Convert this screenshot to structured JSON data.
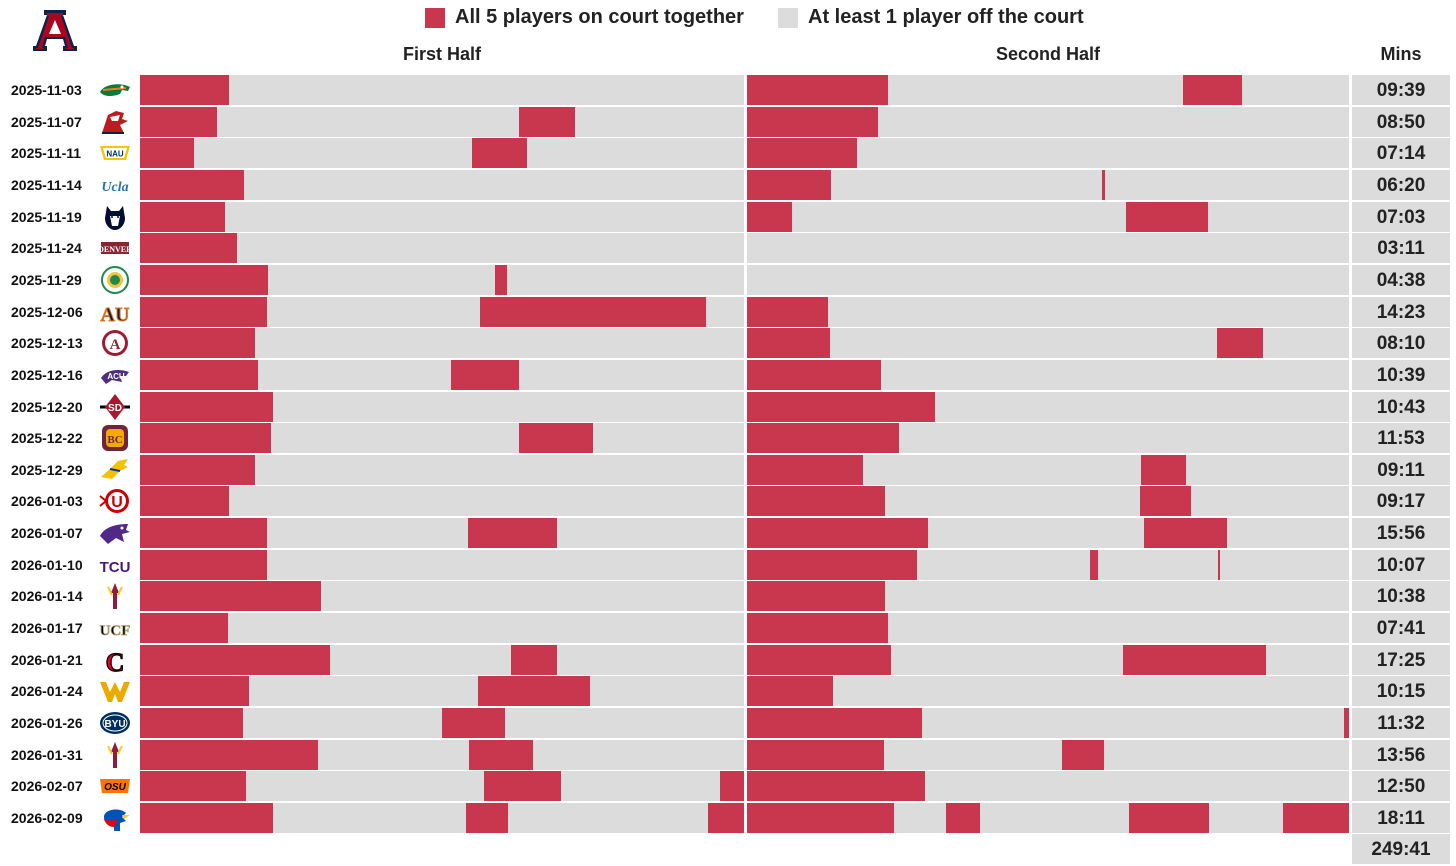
{
  "chart_data": {
    "type": "timeline",
    "team": "Arizona",
    "legend": [
      {
        "label": "All 5 players on court together",
        "color": "#c8374e"
      },
      {
        "label": "At least 1 player off the court",
        "color": "#dcdcdc"
      }
    ],
    "halves": [
      "First Half",
      "Second Half"
    ],
    "mins_header": "Mins",
    "half_length_minutes": 20,
    "games": [
      {
        "date": "2025-11-03",
        "opponent_logo": "florida-gator-logo",
        "mins": "09:39",
        "first_half": [
          [
            0,
            2.95
          ]
        ],
        "second_half": [
          [
            0,
            4.7
          ],
          [
            14.5,
            16.45
          ]
        ]
      },
      {
        "date": "2025-11-07",
        "opponent_logo": "utah-tech-logo",
        "mins": "08:50",
        "first_half": [
          [
            0,
            2.55
          ],
          [
            12.55,
            14.4
          ]
        ],
        "second_half": [
          [
            0,
            4.35
          ]
        ]
      },
      {
        "date": "2025-11-11",
        "opponent_logo": "nau-logo",
        "mins": "07:14",
        "first_half": [
          [
            0,
            1.8
          ],
          [
            11.0,
            12.8
          ]
        ],
        "second_half": [
          [
            0,
            3.65
          ]
        ]
      },
      {
        "date": "2025-11-14",
        "opponent_logo": "ucla-logo",
        "mins": "06:20",
        "first_half": [
          [
            0,
            3.45
          ]
        ],
        "second_half": [
          [
            0,
            2.8
          ],
          [
            11.8,
            11.88
          ]
        ]
      },
      {
        "date": "2025-11-19",
        "opponent_logo": "uconn-husky-logo",
        "mins": "07:03",
        "first_half": [
          [
            0,
            2.8
          ]
        ],
        "second_half": [
          [
            0,
            1.5
          ],
          [
            12.6,
            15.3
          ]
        ]
      },
      {
        "date": "2025-11-24",
        "opponent_logo": "denver-logo",
        "mins": "03:11",
        "first_half": [
          [
            0,
            3.2
          ]
        ],
        "second_half": []
      },
      {
        "date": "2025-11-29",
        "opponent_logo": "green-round-seal-logo",
        "mins": "04:38",
        "first_half": [
          [
            0,
            4.25
          ],
          [
            11.75,
            12.15
          ]
        ],
        "second_half": []
      },
      {
        "date": "2025-12-06",
        "opponent_logo": "auburn-logo",
        "mins": "14:23",
        "first_half": [
          [
            0,
            4.2
          ],
          [
            11.25,
            18.75
          ]
        ],
        "second_half": [
          [
            0,
            2.7
          ]
        ]
      },
      {
        "date": "2025-12-13",
        "opponent_logo": "alabama-logo",
        "mins": "08:10",
        "first_half": [
          [
            0,
            3.8
          ]
        ],
        "second_half": [
          [
            0,
            2.75
          ],
          [
            15.6,
            17.15
          ]
        ]
      },
      {
        "date": "2025-12-16",
        "opponent_logo": "abilene-christian-logo",
        "mins": "10:39",
        "first_half": [
          [
            0,
            3.9
          ],
          [
            10.3,
            12.55
          ]
        ],
        "second_half": [
          [
            0,
            4.45
          ]
        ]
      },
      {
        "date": "2025-12-20",
        "opponent_logo": "san-diego-state-logo",
        "mins": "10:43",
        "first_half": [
          [
            0,
            4.4
          ]
        ],
        "second_half": [
          [
            0,
            6.25
          ]
        ]
      },
      {
        "date": "2025-12-22",
        "opponent_logo": "bethune-cookman-logo",
        "mins": "11:53",
        "first_half": [
          [
            0,
            4.35
          ],
          [
            12.55,
            15.0
          ]
        ],
        "second_half": [
          [
            0,
            5.05
          ]
        ]
      },
      {
        "date": "2025-12-29",
        "opponent_logo": "south-dakota-state-logo",
        "mins": "09:11",
        "first_half": [
          [
            0,
            3.8
          ]
        ],
        "second_half": [
          [
            0,
            3.85
          ],
          [
            13.1,
            14.6
          ]
        ]
      },
      {
        "date": "2026-01-03",
        "opponent_logo": "utah-logo",
        "mins": "09:17",
        "first_half": [
          [
            0,
            2.95
          ]
        ],
        "second_half": [
          [
            0,
            4.6
          ],
          [
            13.05,
            14.75
          ]
        ]
      },
      {
        "date": "2026-01-07",
        "opponent_logo": "kansas-state-logo",
        "mins": "15:56",
        "first_half": [
          [
            0,
            4.2
          ],
          [
            10.85,
            13.8
          ]
        ],
        "second_half": [
          [
            0,
            6.0
          ],
          [
            13.2,
            15.95
          ]
        ]
      },
      {
        "date": "2026-01-10",
        "opponent_logo": "tcu-logo",
        "mins": "10:07",
        "first_half": [
          [
            0,
            4.2
          ]
        ],
        "second_half": [
          [
            0,
            5.65
          ],
          [
            11.4,
            11.65
          ],
          [
            15.65,
            15.69
          ]
        ]
      },
      {
        "date": "2026-01-14",
        "opponent_logo": "arizona-state-logo",
        "mins": "10:38",
        "first_half": [
          [
            0,
            6.0
          ]
        ],
        "second_half": [
          [
            0,
            4.6
          ]
        ]
      },
      {
        "date": "2026-01-17",
        "opponent_logo": "ucf-logo",
        "mins": "07:41",
        "first_half": [
          [
            0,
            2.9
          ]
        ],
        "second_half": [
          [
            0,
            4.7
          ]
        ]
      },
      {
        "date": "2026-01-21",
        "opponent_logo": "cincinnati-logo",
        "mins": "17:25",
        "first_half": [
          [
            0,
            6.3
          ],
          [
            12.3,
            13.8
          ]
        ],
        "second_half": [
          [
            0,
            4.8
          ],
          [
            12.5,
            17.25
          ]
        ]
      },
      {
        "date": "2026-01-24",
        "opponent_logo": "west-virginia-logo",
        "mins": "10:15",
        "first_half": [
          [
            0,
            3.6
          ],
          [
            11.2,
            14.9
          ]
        ],
        "second_half": [
          [
            0,
            2.85
          ]
        ]
      },
      {
        "date": "2026-01-26",
        "opponent_logo": "byu-logo",
        "mins": "11:32",
        "first_half": [
          [
            0,
            3.4
          ],
          [
            10.0,
            12.1
          ]
        ],
        "second_half": [
          [
            0,
            5.8
          ],
          [
            19.85,
            20
          ]
        ]
      },
      {
        "date": "2026-01-31",
        "opponent_logo": "arizona-state-logo",
        "mins": "13:56",
        "first_half": [
          [
            0,
            5.9
          ],
          [
            10.9,
            13.0
          ]
        ],
        "second_half": [
          [
            0,
            4.55
          ],
          [
            10.45,
            11.85
          ]
        ]
      },
      {
        "date": "2026-02-07",
        "opponent_logo": "oklahoma-state-logo",
        "mins": "12:50",
        "first_half": [
          [
            0,
            3.5
          ],
          [
            11.4,
            13.95
          ],
          [
            19.2,
            20
          ]
        ],
        "second_half": [
          [
            0,
            5.9
          ]
        ]
      },
      {
        "date": "2026-02-09",
        "opponent_logo": "kansas-jayhawk-logo",
        "mins": "18:11",
        "first_half": [
          [
            0,
            4.4
          ],
          [
            10.8,
            12.2
          ],
          [
            18.8,
            20
          ]
        ],
        "second_half": [
          [
            0,
            4.9
          ],
          [
            6.6,
            7.75
          ],
          [
            12.7,
            15.35
          ],
          [
            17.8,
            20
          ]
        ]
      }
    ],
    "total_mins": "249:41"
  }
}
